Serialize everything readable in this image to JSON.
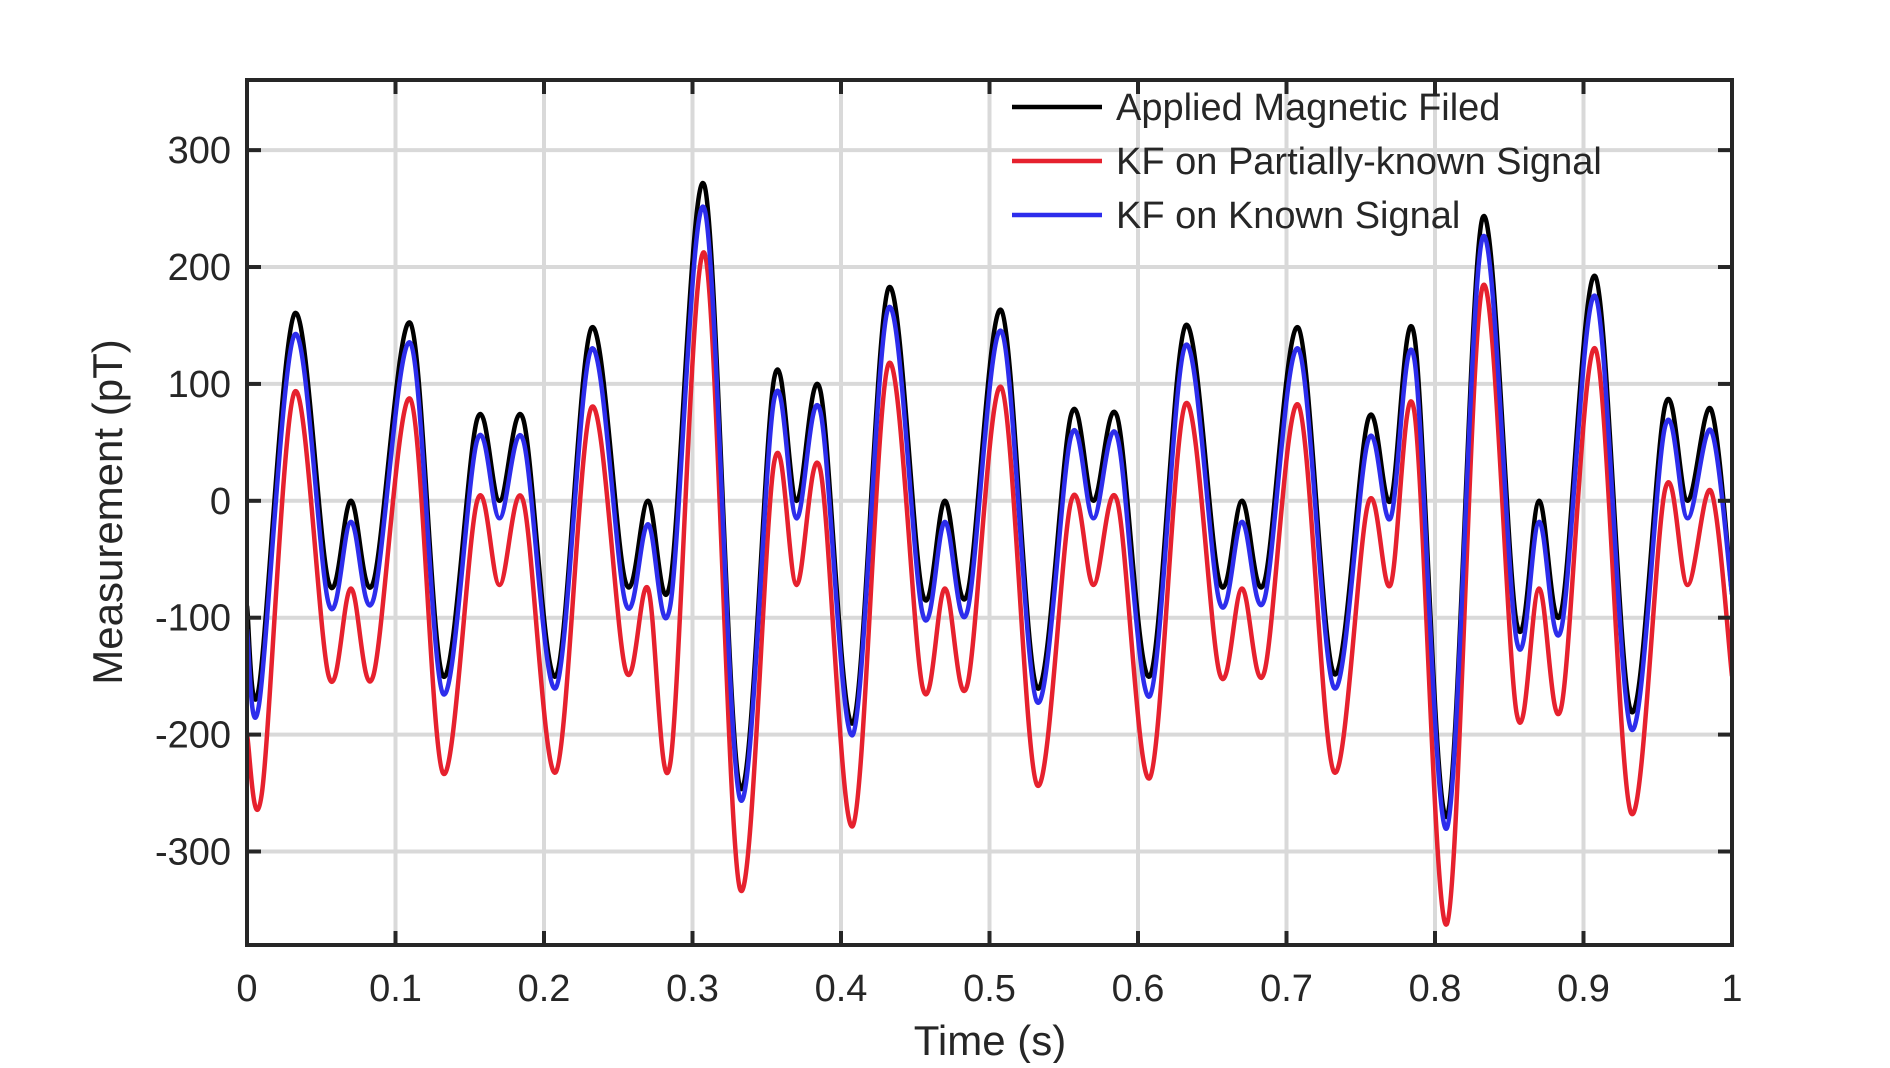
{
  "chart_data": {
    "type": "line",
    "title": "",
    "xlabel": "Time (s)",
    "ylabel": "Measurement (pT)",
    "xlim": [
      0,
      1
    ],
    "ylim": [
      -380,
      360
    ],
    "grid": true,
    "legend_position": "top-right",
    "x_ticks": [
      0,
      0.1,
      0.2,
      0.3,
      0.4,
      0.5,
      0.6,
      0.7,
      0.8,
      0.9,
      1
    ],
    "x_tick_labels": [
      "0",
      "0.1",
      "0.2",
      "0.3",
      "0.4",
      "0.5",
      "0.6",
      "0.7",
      "0.8",
      "0.9",
      "1"
    ],
    "y_ticks": [
      300,
      200,
      100,
      0,
      -100,
      -200,
      -300
    ],
    "y_tick_labels": [
      "300",
      "200",
      "100",
      "0",
      "-100",
      "-200",
      "-300"
    ],
    "series": [
      {
        "name": "Applied Magnetic Filed",
        "color": "#000000",
        "x": [
          0,
          0.008,
          0.032,
          0.055,
          0.07,
          0.085,
          0.11,
          0.132,
          0.155,
          0.17,
          0.186,
          0.208,
          0.232,
          0.255,
          0.27,
          0.285,
          0.308,
          0.332,
          0.355,
          0.37,
          0.386,
          0.408,
          0.432,
          0.455,
          0.47,
          0.485,
          0.508,
          0.532,
          0.555,
          0.57,
          0.586,
          0.608,
          0.632,
          0.655,
          0.67,
          0.685,
          0.708,
          0.732,
          0.755,
          0.77,
          0.786,
          0.808,
          0.832,
          0.855,
          0.87,
          0.885,
          0.908,
          0.932,
          0.955,
          0.97,
          0.986,
          1
        ],
        "y": [
          -90,
          -160,
          160,
          -70,
          0,
          -70,
          152,
          -150,
          70,
          0,
          70,
          -150,
          148,
          -70,
          0,
          -70,
          270,
          -245,
          105,
          0,
          95,
          -190,
          182,
          -80,
          0,
          -80,
          163,
          -160,
          74,
          0,
          72,
          -150,
          150,
          -70,
          0,
          -70,
          148,
          -148,
          70,
          0,
          142,
          -270,
          242,
          -105,
          0,
          -95,
          192,
          -180,
          82,
          0,
          78,
          -80
        ]
      },
      {
        "name": "KF on Partially-known Signal",
        "color": "#e6212e",
        "x": [
          0,
          0.01,
          0.032,
          0.055,
          0.07,
          0.085,
          0.11,
          0.132,
          0.155,
          0.17,
          0.186,
          0.208,
          0.232,
          0.255,
          0.27,
          0.285,
          0.308,
          0.332,
          0.355,
          0.37,
          0.386,
          0.408,
          0.432,
          0.455,
          0.47,
          0.485,
          0.508,
          0.532,
          0.555,
          0.57,
          0.586,
          0.608,
          0.632,
          0.655,
          0.67,
          0.685,
          0.708,
          0.732,
          0.755,
          0.77,
          0.786,
          0.808,
          0.832,
          0.855,
          0.87,
          0.885,
          0.908,
          0.932,
          0.955,
          0.97,
          0.986,
          1
        ],
        "y": [
          -200,
          -250,
          93,
          -150,
          -75,
          -150,
          87,
          -233,
          0,
          -72,
          0,
          -232,
          80,
          -145,
          -75,
          -225,
          212,
          -332,
          33,
          -72,
          27,
          -278,
          117,
          -160,
          -75,
          -158,
          97,
          -243,
          0,
          -72,
          0,
          -237,
          83,
          -148,
          -75,
          -147,
          82,
          -232,
          -2,
          -72,
          77,
          -362,
          183,
          -182,
          -75,
          -177,
          130,
          -267,
          10,
          -72,
          8,
          -150
        ]
      },
      {
        "name": "KF on Known Signal",
        "color": "#2d2dec",
        "x": [
          0,
          0.008,
          0.032,
          0.055,
          0.07,
          0.085,
          0.11,
          0.132,
          0.155,
          0.17,
          0.186,
          0.208,
          0.232,
          0.255,
          0.27,
          0.285,
          0.308,
          0.332,
          0.355,
          0.37,
          0.386,
          0.408,
          0.432,
          0.455,
          0.47,
          0.485,
          0.508,
          0.532,
          0.555,
          0.57,
          0.586,
          0.608,
          0.632,
          0.655,
          0.67,
          0.685,
          0.708,
          0.732,
          0.755,
          0.77,
          0.786,
          0.808,
          0.832,
          0.855,
          0.87,
          0.885,
          0.908,
          0.932,
          0.955,
          0.97,
          0.986,
          1
        ],
        "y": [
          -110,
          -175,
          142,
          -88,
          -18,
          -85,
          135,
          -165,
          52,
          -15,
          52,
          -160,
          130,
          -88,
          -20,
          -90,
          250,
          -255,
          87,
          -15,
          77,
          -200,
          165,
          -97,
          -18,
          -95,
          145,
          -172,
          56,
          -15,
          55,
          -167,
          133,
          -87,
          -18,
          -85,
          130,
          -160,
          52,
          -15,
          122,
          -280,
          225,
          -120,
          -18,
          -110,
          175,
          -195,
          64,
          -15,
          60,
          -80
        ]
      }
    ]
  }
}
